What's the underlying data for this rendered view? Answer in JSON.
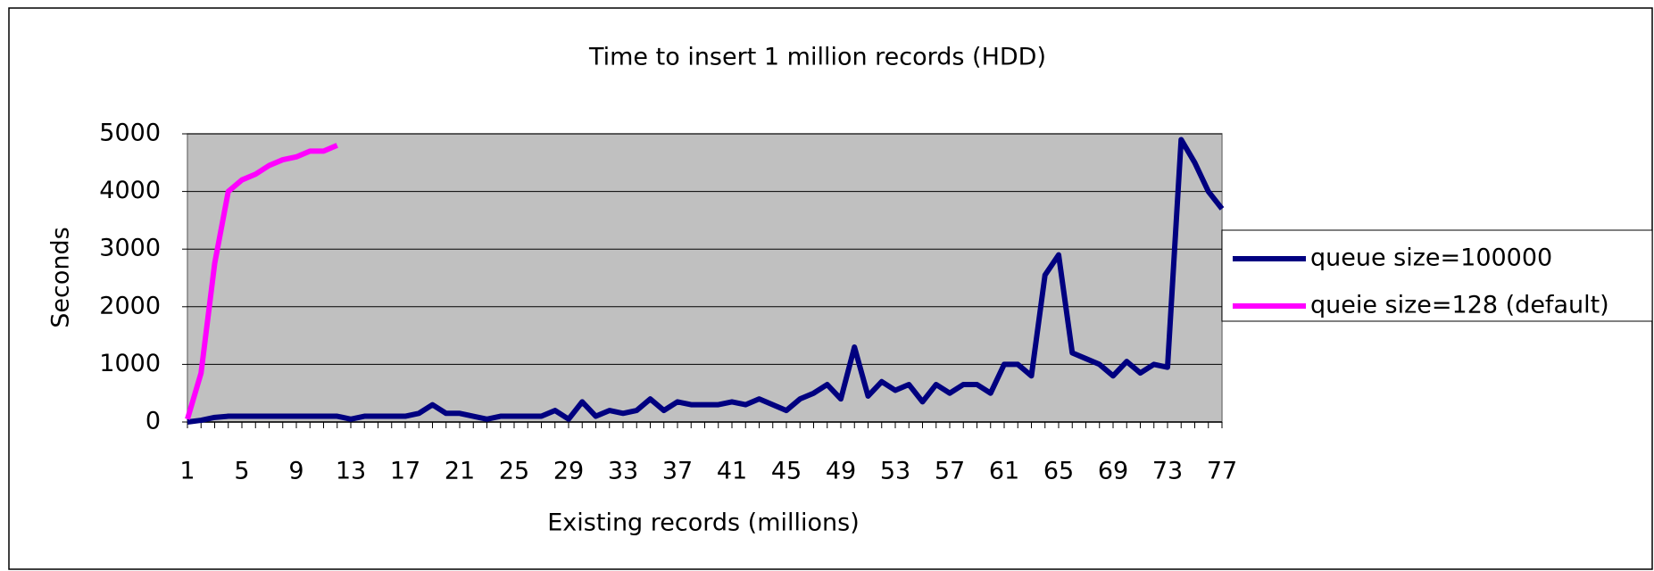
{
  "chart_data": {
    "type": "line",
    "title": "Time to insert 1 million records (HDD)",
    "x_label": "Existing records (millions)",
    "y_label": "Seconds",
    "categories": [
      1,
      null,
      null,
      null,
      5,
      null,
      null,
      null,
      9,
      null,
      null,
      null,
      13,
      null,
      null,
      null,
      17,
      null,
      null,
      null,
      21,
      null,
      null,
      null,
      25,
      null,
      null,
      null,
      29,
      null,
      null,
      null,
      33,
      null,
      null,
      null,
      37,
      null,
      null,
      null,
      41,
      null,
      null,
      null,
      45,
      null,
      null,
      null,
      49,
      null,
      null,
      null,
      53,
      null,
      null,
      null,
      57,
      null,
      null,
      null,
      61,
      null,
      null,
      null,
      65,
      null,
      null,
      null,
      69,
      null,
      null,
      null,
      73,
      null,
      null,
      null,
      77
    ],
    "series": [
      {
        "name": "queue size=100000",
        "color": "#000080",
        "values": [
          0,
          30,
          80,
          100,
          100,
          100,
          100,
          100,
          100,
          100,
          100,
          100,
          50,
          100,
          100,
          100,
          100,
          150,
          300,
          150,
          150,
          100,
          50,
          100,
          100,
          100,
          100,
          200,
          50,
          350,
          100,
          200,
          150,
          200,
          400,
          200,
          350,
          300,
          300,
          300,
          350,
          300,
          400,
          300,
          200,
          400,
          500,
          650,
          400,
          1300,
          450,
          700,
          550,
          650,
          350,
          650,
          500,
          650,
          650,
          500,
          1000,
          1000,
          800,
          2550,
          2900,
          1200,
          1100,
          1000,
          800,
          1050,
          850,
          1000,
          950,
          4900,
          4500,
          4000,
          3700
        ]
      },
      {
        "name": "queie size=128 (default)",
        "color": "#ff00ff",
        "values": [
          50,
          850,
          2750,
          4000,
          4200,
          4300,
          4450,
          4550,
          4600,
          4700,
          4700,
          4800,
          null,
          null,
          null,
          null,
          null,
          null,
          null,
          null,
          null,
          null,
          null,
          null,
          null,
          null,
          null,
          null,
          null,
          null,
          null,
          null,
          null,
          null,
          null,
          null,
          null,
          null,
          null,
          null,
          null,
          null,
          null,
          null,
          null,
          null,
          null,
          null,
          null,
          null,
          null,
          null,
          null,
          null,
          null,
          null,
          null,
          null,
          null,
          null,
          null,
          null,
          null,
          null,
          null,
          null,
          null,
          null,
          null,
          null,
          null,
          null,
          null,
          null,
          null,
          null,
          null
        ]
      }
    ],
    "ylim": [
      0,
      5000
    ],
    "yticks": [
      0,
      1000,
      2000,
      3000,
      4000,
      5000
    ],
    "grid": true,
    "legend": "right",
    "plot_background": "#c0c0c0"
  }
}
